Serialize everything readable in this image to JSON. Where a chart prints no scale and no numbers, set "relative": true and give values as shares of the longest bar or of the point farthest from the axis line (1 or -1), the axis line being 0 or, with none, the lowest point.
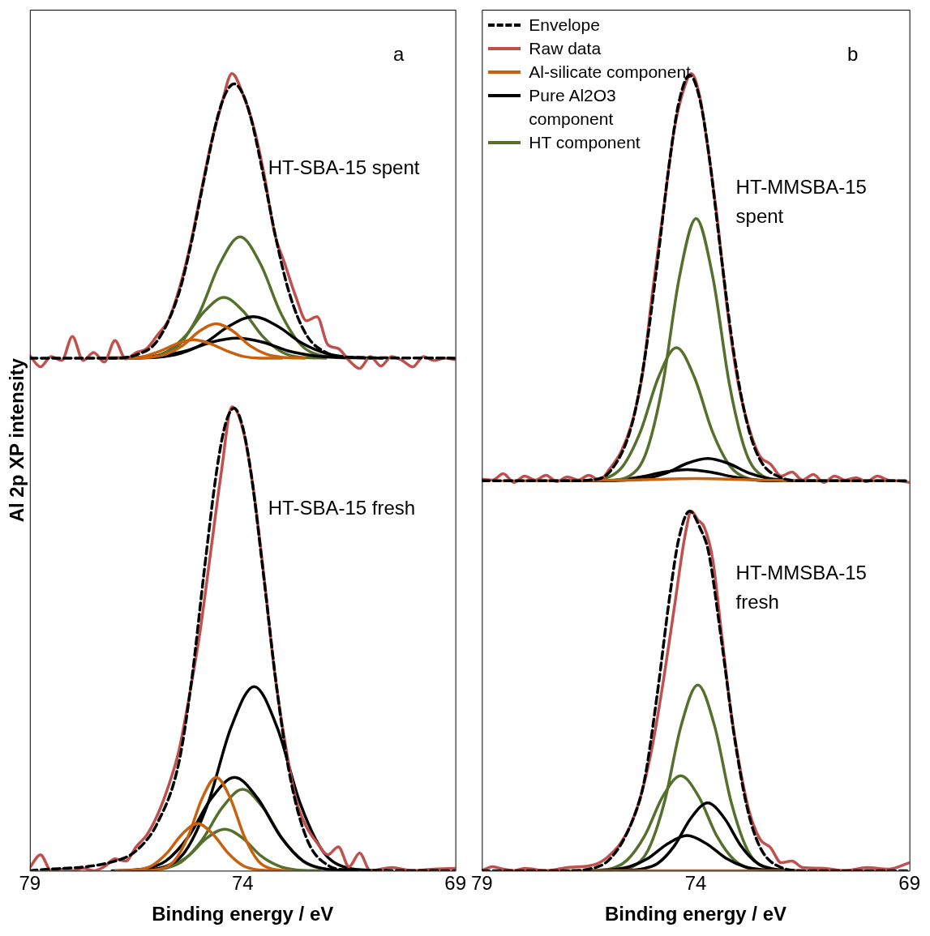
{
  "chart_data": [
    {
      "type": "line",
      "relative": true,
      "xlim": [
        79,
        69
      ],
      "xticks": [
        79,
        74,
        69
      ],
      "xlabel": "Binding energy / eV",
      "ylabel": "Al 2p XP intensity",
      "grid": false,
      "legend": false,
      "marker": "none",
      "annotations": [
        "a",
        "HT-SBA-15 spent",
        "HT-SBA-15 fresh"
      ],
      "series": [
        {
          "color": "#000000",
          "line_style": "dashed",
          "x": [
            79,
            77,
            76.5,
            76,
            75.5,
            75.2,
            74.9,
            74.6,
            74.4,
            74.2,
            74.0,
            73.8,
            73.5,
            73.2,
            72.9,
            72.5,
            72,
            71.5,
            69
          ],
          "values": [
            0.643,
            0.643,
            0.647,
            0.665,
            0.724,
            0.789,
            0.869,
            0.943,
            0.975,
            0.987,
            0.975,
            0.943,
            0.869,
            0.789,
            0.724,
            0.672,
            0.649,
            0.644,
            0.643
          ]
        },
        {
          "color": "#c0504d",
          "x": [
            79,
            78.75,
            78.5,
            78.25,
            78,
            77.75,
            77.5,
            77.25,
            77,
            76.75,
            76.5,
            76.25,
            76,
            75.75,
            75.5,
            75.25,
            75,
            74.75,
            74.5,
            74.25,
            74,
            73.75,
            73.5,
            73.25,
            73,
            72.75,
            72.5,
            72.25,
            72,
            71.75,
            71.5,
            71.25,
            71,
            70.75,
            70.5,
            70.25,
            70,
            69.75,
            69.5,
            69.25,
            69
          ],
          "values": [
            0.646,
            0.632,
            0.645,
            0.64,
            0.67,
            0.64,
            0.65,
            0.638,
            0.665,
            0.642,
            0.65,
            0.655,
            0.672,
            0.69,
            0.728,
            0.78,
            0.845,
            0.91,
            0.96,
            1.0,
            0.975,
            0.935,
            0.875,
            0.8,
            0.76,
            0.72,
            0.69,
            0.695,
            0.66,
            0.655,
            0.64,
            0.63,
            0.645,
            0.633,
            0.645,
            0.64,
            0.632,
            0.645,
            0.64,
            0.643,
            0.641
          ]
        },
        {
          "color": "#c8600e",
          "x": [
            76.7,
            76.18,
            75.79,
            75.4,
            75.01,
            74.62,
            74.23,
            73.84,
            73.45,
            73.06,
            72.54
          ],
          "values": [
            0.643,
            0.644,
            0.648,
            0.659,
            0.677,
            0.686,
            0.677,
            0.659,
            0.648,
            0.644,
            0.643
          ]
        },
        {
          "color": "#c8600e",
          "x": [
            77.23,
            76.71,
            76.32,
            75.93,
            75.54,
            75.15,
            74.76,
            74.37,
            73.98,
            73.59,
            73.07
          ],
          "values": [
            0.643,
            0.643,
            0.645,
            0.652,
            0.661,
            0.666,
            0.661,
            0.652,
            0.645,
            0.643,
            0.643
          ]
        },
        {
          "color": "#000000",
          "x": [
            76.79,
            76.03,
            75.46,
            74.89,
            74.32,
            73.75,
            73.18,
            72.61,
            72.04,
            71.47,
            70.71
          ],
          "values": [
            0.643,
            0.644,
            0.649,
            0.662,
            0.683,
            0.695,
            0.683,
            0.662,
            0.649,
            0.644,
            0.643
          ]
        },
        {
          "color": "#000000",
          "x": [
            77.33,
            76.53,
            75.93,
            75.33,
            74.73,
            74.13,
            73.53,
            72.93,
            72.33,
            71.73,
            70.93
          ],
          "values": [
            0.643,
            0.644,
            0.646,
            0.652,
            0.663,
            0.668,
            0.663,
            0.652,
            0.646,
            0.644,
            0.643
          ]
        },
        {
          "color": "#55702c",
          "x": [
            76.62,
            75.98,
            75.5,
            75.02,
            74.54,
            74.06,
            73.58,
            73.1,
            72.62,
            72.14,
            71.5
          ],
          "values": [
            0.643,
            0.646,
            0.659,
            0.699,
            0.761,
            0.795,
            0.761,
            0.699,
            0.659,
            0.646,
            0.643
          ]
        },
        {
          "color": "#55702c",
          "x": [
            76.84,
            76.24,
            75.79,
            75.34,
            74.89,
            74.44,
            73.99,
            73.54,
            73.09,
            72.64,
            72.04
          ],
          "values": [
            0.643,
            0.644,
            0.651,
            0.671,
            0.702,
            0.719,
            0.702,
            0.671,
            0.651,
            0.644,
            0.643
          ]
        },
        {
          "color": "#000000",
          "line_style": "dashed",
          "x": [
            79,
            77,
            76.5,
            76,
            75.5,
            75.2,
            74.9,
            74.6,
            74.4,
            74.2,
            74.0,
            73.8,
            73.5,
            73.2,
            72.9,
            72.5,
            72,
            71.5,
            69
          ],
          "values": [
            0,
            0.012,
            0.025,
            0.06,
            0.135,
            0.238,
            0.377,
            0.505,
            0.561,
            0.58,
            0.557,
            0.498,
            0.367,
            0.23,
            0.122,
            0.041,
            0.007,
            0.001,
            0
          ]
        },
        {
          "color": "#c0504d",
          "x": [
            79,
            78.75,
            78.5,
            78.25,
            78,
            77.75,
            77.5,
            77.25,
            77,
            76.75,
            76.5,
            76.25,
            76,
            75.75,
            75.5,
            75.25,
            75,
            74.75,
            74.5,
            74.25,
            74,
            73.75,
            73.5,
            73.25,
            73,
            72.75,
            72.5,
            72.25,
            72,
            71.75,
            71.5,
            71.25,
            71,
            70.5,
            70,
            69.5,
            69
          ],
          "values": [
            0.004,
            0.02,
            0,
            0.002,
            0,
            0.003,
            0,
            0.005,
            0.015,
            0.012,
            0.03,
            0.045,
            0.07,
            0.105,
            0.15,
            0.22,
            0.3,
            0.4,
            0.5,
            0.582,
            0.555,
            0.48,
            0.37,
            0.25,
            0.16,
            0.09,
            0.055,
            0.035,
            0.02,
            0.03,
            0.005,
            0.022,
            0,
            0.004,
            0,
            0.002,
            0.003
          ]
        },
        {
          "color": "#c8600e",
          "x": [
            76.38,
            75.94,
            75.61,
            75.28,
            74.95,
            74.62,
            74.29,
            73.96,
            73.63,
            73.3,
            72.86
          ],
          "values": [
            0,
            0.002,
            0.012,
            0.043,
            0.091,
            0.117,
            0.091,
            0.043,
            0.012,
            0.002,
            0
          ]
        },
        {
          "color": "#c8600e",
          "x": [
            76.98,
            76.5,
            76.14,
            75.78,
            75.42,
            75.06,
            74.7,
            74.34,
            73.98,
            73.62,
            73.14
          ],
          "values": [
            0,
            0.001,
            0.006,
            0.022,
            0.046,
            0.059,
            0.046,
            0.022,
            0.006,
            0.001,
            0
          ]
        },
        {
          "color": "#000000",
          "x": [
            76.61,
            75.89,
            75.35,
            74.81,
            74.27,
            73.73,
            73.19,
            72.65,
            72.11,
            71.57,
            70.85
          ],
          "values": [
            0,
            0.004,
            0.024,
            0.085,
            0.18,
            0.231,
            0.18,
            0.085,
            0.024,
            0.004,
            0
          ]
        },
        {
          "color": "#000000",
          "x": [
            77.07,
            76.35,
            75.81,
            75.27,
            74.73,
            74.19,
            73.65,
            73.11,
            72.57,
            72.03,
            71.31
          ],
          "values": [
            0,
            0.002,
            0.012,
            0.043,
            0.091,
            0.117,
            0.091,
            0.043,
            0.012,
            0.002,
            0
          ]
        },
        {
          "color": "#55702c",
          "x": [
            76.56,
            75.92,
            75.44,
            74.96,
            74.48,
            74.0,
            73.52,
            73.04,
            72.56,
            72.08,
            71.44
          ],
          "values": [
            0,
            0.002,
            0.011,
            0.038,
            0.079,
            0.102,
            0.079,
            0.038,
            0.011,
            0.002,
            0
          ]
        },
        {
          "color": "#55702c",
          "x": [
            76.66,
            76.1,
            75.68,
            75.26,
            74.84,
            74.42,
            74.0,
            73.58,
            73.16,
            72.74,
            72.18
          ],
          "values": [
            0,
            0.001,
            0.006,
            0.019,
            0.041,
            0.052,
            0.041,
            0.019,
            0.006,
            0.001,
            0
          ]
        }
      ]
    },
    {
      "type": "line",
      "relative": true,
      "xlim": [
        79,
        69
      ],
      "xticks": [
        79,
        74,
        69
      ],
      "xlabel": "Binding energy / eV",
      "grid": false,
      "legend": "top left",
      "marker": "none",
      "annotations": [
        "b",
        "HT-MMSBA-15 spent",
        "HT-MMSBA-15 fresh"
      ],
      "series": [
        {
          "name": "Envelope",
          "color": "#000000",
          "line_style": "dashed",
          "x": [
            79,
            77,
            76.5,
            76,
            75.5,
            75.2,
            74.9,
            74.6,
            74.4,
            74.14,
            73.9,
            73.7,
            73.4,
            73.1,
            72.8,
            72.5,
            72,
            71.5,
            69
          ],
          "values": [
            0.489,
            0.489,
            0.49,
            0.501,
            0.558,
            0.64,
            0.761,
            0.894,
            0.962,
            0.998,
            0.967,
            0.902,
            0.77,
            0.647,
            0.562,
            0.516,
            0.493,
            0.489,
            0.489
          ]
        },
        {
          "name": "Raw data",
          "color": "#c0504d",
          "x": [
            79,
            78.75,
            78.5,
            78.25,
            78,
            77.75,
            77.5,
            77.25,
            77,
            76.75,
            76.5,
            76.25,
            76,
            75.75,
            75.5,
            75.25,
            75,
            74.75,
            74.5,
            74.25,
            74.1,
            73.9,
            73.75,
            73.5,
            73.25,
            73,
            72.75,
            72.5,
            72.25,
            72,
            71.75,
            71.5,
            71.25,
            71,
            70.75,
            70.5,
            70.25,
            70,
            69.75,
            69.5,
            69.25,
            69
          ],
          "values": [
            0.491,
            0.49,
            0.498,
            0.487,
            0.495,
            0.49,
            0.496,
            0.488,
            0.494,
            0.49,
            0.496,
            0.49,
            0.505,
            0.525,
            0.56,
            0.62,
            0.73,
            0.83,
            0.93,
            0.985,
            1.0,
            0.97,
            0.92,
            0.82,
            0.7,
            0.61,
            0.555,
            0.52,
            0.51,
            0.495,
            0.5,
            0.49,
            0.497,
            0.487,
            0.495,
            0.49,
            0.493,
            0.488,
            0.495,
            0.49,
            0.489,
            0.487
          ]
        },
        {
          "name": "Al-silicate component",
          "color": "#c8600e",
          "x": [
            78.5,
            75.5,
            74,
            72.5,
            69.5
          ],
          "values": [
            0.489,
            0.49,
            0.492,
            0.49,
            0.489
          ]
        },
        {
          "name": "Pure Al2O3 component",
          "color": "#000000",
          "x": [
            76.28,
            75.64,
            75.16,
            74.68,
            74.2,
            73.72,
            73.24,
            72.76,
            72.28,
            71.8,
            71.16
          ],
          "values": [
            0.489,
            0.49,
            0.492,
            0.499,
            0.511,
            0.517,
            0.511,
            0.499,
            0.492,
            0.49,
            0.489
          ]
        },
        {
          "name": "HT component",
          "color": "#55702c",
          "x": [
            76.07,
            75.55,
            75.16,
            74.77,
            74.38,
            73.99,
            73.6,
            73.21,
            72.82,
            72.43,
            71.91
          ],
          "values": [
            0.489,
            0.495,
            0.524,
            0.61,
            0.745,
            0.818,
            0.745,
            0.61,
            0.524,
            0.495,
            0.489
          ]
        },
        {
          "color": "#000000",
          "x": [
            77.08,
            76.36,
            75.82,
            75.28,
            74.74,
            74.2,
            73.66,
            73.12,
            72.58,
            72.04,
            71.32
          ],
          "values": [
            0.489,
            0.489,
            0.49,
            0.494,
            0.5,
            0.503,
            0.5,
            0.494,
            0.49,
            0.489,
            0.489
          ]
        },
        {
          "color": "#55702c",
          "x": [
            76.69,
            76.13,
            75.71,
            75.29,
            74.87,
            74.45,
            74.03,
            73.61,
            73.19,
            72.77,
            72.21
          ],
          "values": [
            0.489,
            0.492,
            0.507,
            0.551,
            0.619,
            0.656,
            0.619,
            0.551,
            0.507,
            0.492,
            0.489
          ]
        },
        {
          "color": "#000000",
          "line_style": "dashed",
          "x": [
            79,
            77,
            76.5,
            76,
            75.5,
            75.2,
            74.9,
            74.6,
            74.4,
            74.14,
            73.9,
            73.7,
            73.4,
            73.1,
            72.8,
            72.5,
            72,
            71.5,
            69
          ],
          "values": [
            0,
            0,
            0.002,
            0.015,
            0.06,
            0.113,
            0.221,
            0.347,
            0.415,
            0.451,
            0.43,
            0.4,
            0.29,
            0.17,
            0.08,
            0.03,
            0.004,
            0,
            0
          ]
        },
        {
          "color": "#c0504d",
          "x": [
            79,
            78.75,
            78.5,
            78.25,
            78,
            77.5,
            77,
            76.5,
            76.25,
            76,
            75.75,
            75.5,
            75.25,
            75,
            74.75,
            74.5,
            74.25,
            74.1,
            73.95,
            73.8,
            73.6,
            73.4,
            73.2,
            73,
            72.75,
            72.5,
            72.25,
            72,
            71.75,
            71.5,
            71,
            70.5,
            70,
            69.5,
            69
          ],
          "values": [
            0,
            0.005,
            0.002,
            0,
            0.003,
            0,
            0.004,
            0.006,
            0.01,
            0.02,
            0.035,
            0.06,
            0.1,
            0.16,
            0.24,
            0.33,
            0.42,
            0.451,
            0.44,
            0.431,
            0.39,
            0.3,
            0.21,
            0.14,
            0.075,
            0.04,
            0.029,
            0.01,
            0.012,
            0.004,
            0.003,
            0,
            0.004,
            0.002,
            0.01
          ]
        },
        {
          "color": "#c8600e",
          "x": [
            78.5,
            69.5
          ],
          "values": [
            0,
            0
          ]
        },
        {
          "color": "#000000",
          "x": [
            75.8,
            75.28,
            74.89,
            74.5,
            74.11,
            73.72,
            73.33,
            72.94,
            72.55,
            72.16,
            71.64
          ],
          "values": [
            0,
            0.002,
            0.009,
            0.031,
            0.066,
            0.085,
            0.066,
            0.031,
            0.009,
            0.002,
            0
          ]
        },
        {
          "color": "#000000",
          "x": [
            76.6,
            76.0,
            75.55,
            75.1,
            74.65,
            74.2,
            73.75,
            73.3,
            72.85,
            72.4,
            71.8
          ],
          "values": [
            0,
            0.001,
            0.005,
            0.016,
            0.034,
            0.044,
            0.034,
            0.016,
            0.005,
            0.001,
            0
          ]
        },
        {
          "color": "#55702c",
          "x": [
            76.03,
            75.51,
            75.12,
            74.73,
            74.34,
            73.95,
            73.56,
            73.17,
            72.78,
            72.39,
            71.87
          ],
          "values": [
            0,
            0.004,
            0.025,
            0.086,
            0.182,
            0.233,
            0.182,
            0.086,
            0.025,
            0.004,
            0
          ]
        },
        {
          "color": "#55702c",
          "x": [
            76.59,
            76.03,
            75.61,
            75.19,
            74.77,
            74.35,
            73.93,
            73.51,
            73.09,
            72.67,
            72.11
          ],
          "values": [
            0,
            0.002,
            0.013,
            0.044,
            0.093,
            0.119,
            0.093,
            0.044,
            0.013,
            0.002,
            0
          ]
        }
      ]
    }
  ]
}
